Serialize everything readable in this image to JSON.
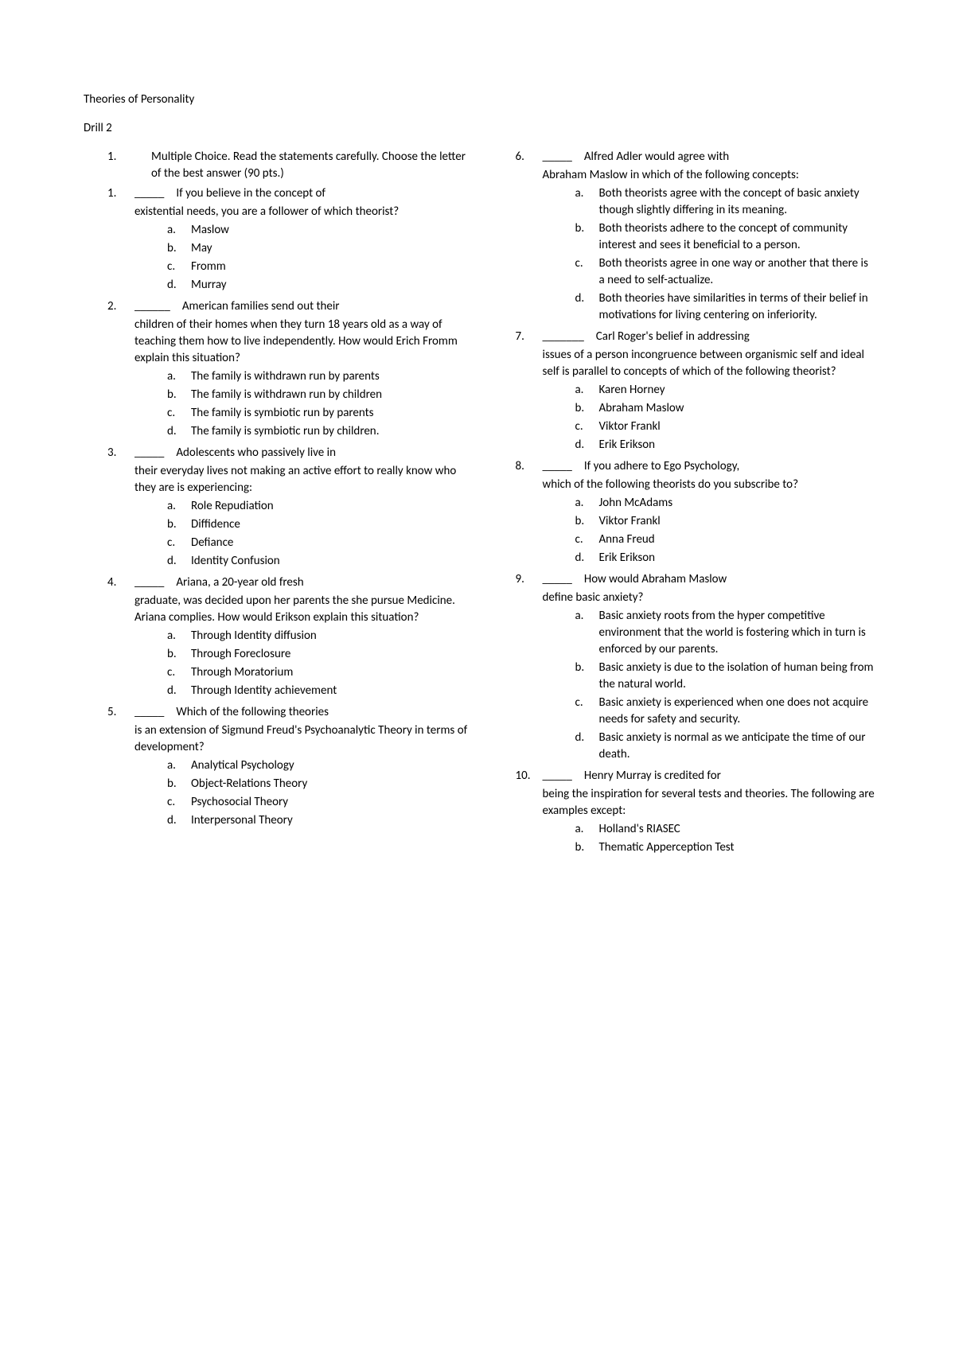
{
  "title": "Theories of Personality",
  "subtitle": "Drill 2",
  "instruction_num": "1.",
  "instruction": "Multiple Choice. Read the statements carefully. Choose the letter of the best answer (90 pts.)",
  "blank5": "_____",
  "blank6": "______",
  "blank7": "_______",
  "left": [
    {
      "num": "1.",
      "blank": "_____",
      "stem": "If you believe in the concept of",
      "cont": "existential needs, you are a follower of which theorist?",
      "opts": [
        {
          "l": "a.",
          "t": "Maslow"
        },
        {
          "l": "b.",
          "t": "May"
        },
        {
          "l": "c.",
          "t": "Fromm"
        },
        {
          "l": "d.",
          "t": "Murray"
        }
      ]
    },
    {
      "num": "2.",
      "blank": "______",
      "stem": "American families send out their",
      "cont": "children of their homes when they turn 18 years old as a way of teaching them how to live independently. How would Erich Fromm explain this situation?",
      "opts": [
        {
          "l": "a.",
          "t": "The family is withdrawn run by parents"
        },
        {
          "l": "b.",
          "t": "The family is withdrawn run by children"
        },
        {
          "l": "c.",
          "t": "The family is symbiotic run by parents"
        },
        {
          "l": "d.",
          "t": "The family is symbiotic run by children."
        }
      ]
    },
    {
      "num": "3.",
      "blank": "_____",
      "stem": "Adolescents who passively live in",
      "cont": "their everyday lives not making an active effort to really know who they are is experiencing:",
      "opts": [
        {
          "l": "a.",
          "t": "Role Repudiation"
        },
        {
          "l": "b.",
          "t": "Diffidence"
        },
        {
          "l": "c.",
          "t": "Defiance"
        },
        {
          "l": "d.",
          "t": "Identity Confusion"
        }
      ]
    },
    {
      "num": "4.",
      "blank": "_____",
      "stem": "Ariana, a 20-year old fresh",
      "cont": "graduate, was decided upon her parents the she pursue Medicine. Ariana complies. How would Erikson explain this situation?",
      "opts": [
        {
          "l": "a.",
          "t": "Through Identity diffusion"
        },
        {
          "l": "b.",
          "t": "Through Foreclosure"
        },
        {
          "l": "c.",
          "t": "Through Moratorium"
        },
        {
          "l": "d.",
          "t": "Through Identity achievement"
        }
      ]
    },
    {
      "num": "5.",
      "blank": "_____",
      "stem": "Which of the following theories",
      "cont": "is an extension of Sigmund Freud's Psychoanalytic Theory in terms of development?",
      "opts": [
        {
          "l": "a.",
          "t": "Analytical Psychology"
        },
        {
          "l": "b.",
          "t": "Object-Relations Theory"
        },
        {
          "l": "c.",
          "t": "Psychosocial Theory"
        },
        {
          "l": "d.",
          "t": "Interpersonal Theory"
        }
      ]
    }
  ],
  "right": [
    {
      "num": "6.",
      "blank": "_____",
      "stem": "Alfred Adler would agree with",
      "cont": "Abraham Maslow in which of the following concepts:",
      "opts": [
        {
          "l": "a.",
          "t": "Both theorists agree with the concept of basic anxiety though slightly differing in its meaning."
        },
        {
          "l": "b.",
          "t": "Both theorists adhere to the concept of community interest and sees it beneficial to a person."
        },
        {
          "l": "c.",
          "t": "Both theorists agree in one way or another that there is a need to self-actualize."
        },
        {
          "l": "d.",
          "t": "Both theories have similarities in terms of their belief in motivations for living centering on inferiority."
        }
      ]
    },
    {
      "num": "7.",
      "blank": "_______",
      "stem": "Carl Roger's belief in addressing",
      "cont": "issues of a person incongruence between organismic self and ideal self is parallel to concepts of which of the following theorist?",
      "opts": [
        {
          "l": "a.",
          "t": "Karen Horney"
        },
        {
          "l": "b.",
          "t": "Abraham Maslow"
        },
        {
          "l": "c.",
          "t": "Viktor Frankl"
        },
        {
          "l": "d.",
          "t": "Erik Erikson"
        }
      ]
    },
    {
      "num": "8.",
      "blank": "_____",
      "stem": "If you adhere to Ego Psychology,",
      "cont": "which of the following theorists do you subscribe to?",
      "opts": [
        {
          "l": "a.",
          "t": "John McAdams"
        },
        {
          "l": "b.",
          "t": "Viktor Frankl"
        },
        {
          "l": "c.",
          "t": "Anna Freud"
        },
        {
          "l": "d.",
          "t": "Erik Erikson"
        }
      ]
    },
    {
      "num": "9.",
      "blank": "_____",
      "stem": "How would Abraham Maslow",
      "cont": "define basic anxiety?",
      "opts": [
        {
          "l": "a.",
          "t": "Basic anxiety roots from the hyper competitive environment that the world is fostering which in turn is enforced by our parents."
        },
        {
          "l": "b.",
          "t": "Basic anxiety is due to the isolation of human being from the natural world."
        },
        {
          "l": "c.",
          "t": "Basic anxiety is experienced when one does not acquire needs for safety and security."
        },
        {
          "l": "d.",
          "t": "Basic anxiety is normal as we anticipate the time of our death."
        }
      ]
    },
    {
      "num": "10.",
      "blank": "_____",
      "stem": "Henry Murray is credited for",
      "cont": "being the inspiration for several tests and theories. The following are examples except:",
      "opts": [
        {
          "l": "a.",
          "t": "Holland's RIASEC"
        },
        {
          "l": "b.",
          "t": "Thematic Apperception Test"
        }
      ]
    }
  ]
}
